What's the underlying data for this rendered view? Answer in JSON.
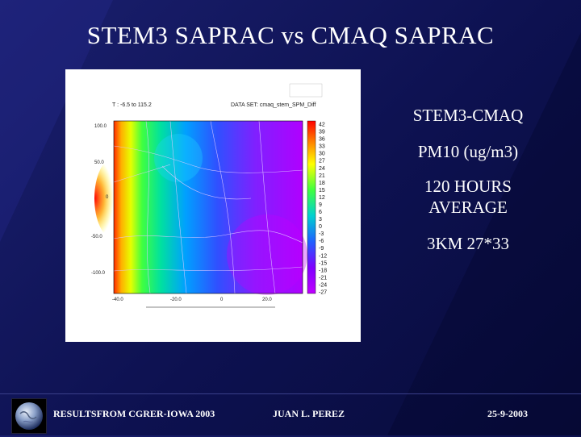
{
  "slide": {
    "title": "STEM3 SAPRAC vs CMAQ SAPRAC",
    "side_lines": [
      "STEM3-CMAQ",
      "PM10 (ug/m3)",
      "120 HOURS AVERAGE",
      "3KM 27*33"
    ],
    "footer": {
      "left": "RESULTSFROM CGRER-IOWA 2003",
      "center": "JUAN L. PEREZ",
      "right": "25-9-2003"
    }
  },
  "map": {
    "header_left": "T : -6.5 to 115.2",
    "header_right": "DATA SET: cmaq_stem_SPM_Diff",
    "colorbar_labels": [
      "42",
      "39",
      "36",
      "33",
      "30",
      "27",
      "24",
      "21",
      "18",
      "15",
      "12",
      "9",
      "6",
      "3",
      "0",
      "-3",
      "-6",
      "-9",
      "-12",
      "-15",
      "-18",
      "-21",
      "-24",
      "-27"
    ],
    "y_tick_labels": [
      "100.0",
      "50.0",
      "0",
      "-50.0",
      "-100.0"
    ],
    "x_tick_labels": [
      "-40.0",
      "-20.0",
      "0",
      "20.0"
    ]
  }
}
